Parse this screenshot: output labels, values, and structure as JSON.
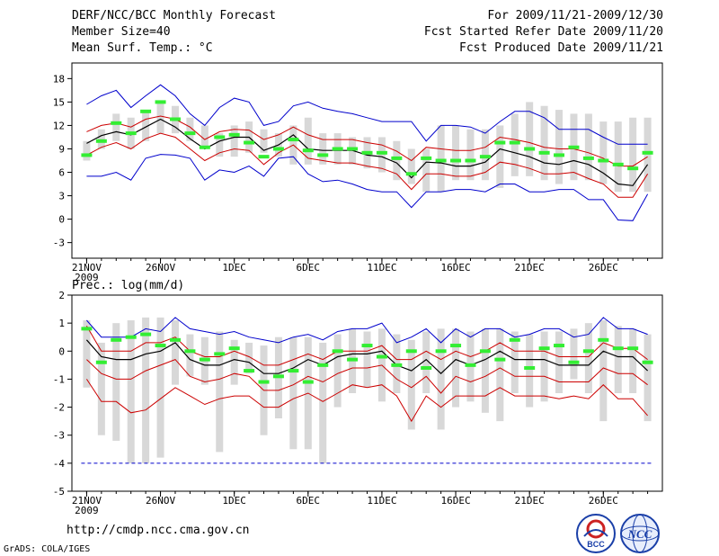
{
  "header": {
    "title": "DERF/NCC/BCC Monthly Forecast",
    "member_size": "Member Size=40",
    "variable": "Mean Surf. Temp.: °C",
    "forecast_period": "For 2009/11/21-2009/12/30",
    "started_refer": "Fcst Started Refer Date 2009/11/20",
    "produced": "Fcst Produced Date 2009/11/21"
  },
  "footer": {
    "url": "http://cmdp.ncc.cma.gov.cn",
    "credit": "GrADS: COLA/IGES",
    "logo_left_text": "BCC",
    "logo_right_text": "NCC"
  },
  "colors": {
    "box": "#d8d8d8",
    "green": "#33ee33",
    "blue": "#0000cc",
    "red": "#cc0000",
    "black": "#000000"
  },
  "chart_data": [
    {
      "type": "box_plume",
      "title": "Mean Surf. Temp.: °C",
      "unit": "°C",
      "ylim": [
        -5,
        20
      ],
      "yticks": [
        -3,
        0,
        3,
        6,
        9,
        12,
        15,
        18
      ],
      "xlim": [
        0,
        40
      ],
      "xtick_labels": [
        "21NOV",
        "26NOV",
        "1DEC",
        "6DEC",
        "11DEC",
        "16DEC",
        "21DEC",
        "26DEC"
      ],
      "xtick_day_index": [
        1,
        6,
        11,
        16,
        21,
        26,
        31,
        36
      ],
      "year_label": "2009",
      "days": 39,
      "box_low": [
        7.5,
        9.0,
        10.0,
        9.0,
        10.0,
        11.0,
        11.0,
        10.0,
        9.0,
        8.0,
        8.0,
        8.5,
        8.5,
        8.0,
        7.0,
        7.0,
        7.0,
        7.0,
        7.0,
        6.5,
        6.0,
        5.0,
        4.5,
        3.5,
        3.5,
        5.0,
        5.0,
        5.0,
        4.0,
        5.5,
        5.5,
        5.0,
        4.5,
        5.0,
        5.0,
        4.5,
        3.5,
        3.5,
        3.5
      ],
      "box_high": [
        10.0,
        11.5,
        13.5,
        13.0,
        14.0,
        15.0,
        14.5,
        13.0,
        12.0,
        11.0,
        12.0,
        12.5,
        11.5,
        11.0,
        12.0,
        13.0,
        11.0,
        11.0,
        10.5,
        10.5,
        10.5,
        10.0,
        9.0,
        9.0,
        12.0,
        12.0,
        11.5,
        11.5,
        12.0,
        13.5,
        15.0,
        14.5,
        14.0,
        13.5,
        13.5,
        12.5,
        12.5,
        13.0,
        13.0
      ],
      "series": [
        {
          "name": "max",
          "color": "blue",
          "values": [
            14.7,
            15.8,
            16.5,
            14.3,
            15.8,
            17.2,
            15.8,
            13.5,
            12.0,
            14.3,
            15.5,
            15.0,
            12.0,
            12.5,
            14.5,
            15.0,
            14.2,
            13.8,
            13.5,
            13.0,
            12.5,
            12.5,
            12.5,
            10.0,
            12.0,
            12.0,
            11.8,
            11.0,
            12.5,
            13.8,
            13.8,
            13.0,
            11.5,
            11.5,
            11.5,
            10.5,
            9.6,
            9.6,
            9.6
          ]
        },
        {
          "name": "p90",
          "color": "red",
          "values": [
            11.2,
            12.0,
            12.3,
            11.8,
            12.8,
            13.2,
            12.8,
            11.8,
            10.2,
            11.2,
            11.5,
            11.4,
            10.2,
            10.8,
            11.8,
            10.8,
            10.2,
            10.2,
            10.2,
            9.8,
            9.5,
            8.7,
            7.5,
            9.2,
            9.0,
            8.8,
            8.8,
            9.2,
            10.5,
            10.2,
            9.8,
            9.2,
            9.0,
            9.0,
            8.5,
            7.8,
            6.8,
            6.8,
            8.0
          ]
        },
        {
          "name": "mean",
          "color": "black",
          "values": [
            9.7,
            10.7,
            11.2,
            10.8,
            11.8,
            12.8,
            11.8,
            10.3,
            9.0,
            10.0,
            10.5,
            10.5,
            8.8,
            9.5,
            10.8,
            9.0,
            8.8,
            8.8,
            8.8,
            8.2,
            8.0,
            7.2,
            5.3,
            7.3,
            7.2,
            6.8,
            6.8,
            7.3,
            9.0,
            8.5,
            8.0,
            7.2,
            7.0,
            7.5,
            7.0,
            5.9,
            4.5,
            4.3,
            7.0
          ]
        },
        {
          "name": "p10",
          "color": "red",
          "values": [
            8.2,
            9.2,
            9.8,
            9.0,
            10.3,
            11.0,
            10.5,
            9.0,
            7.5,
            8.5,
            9.0,
            8.8,
            7.0,
            8.5,
            9.5,
            7.8,
            7.5,
            7.2,
            7.2,
            6.8,
            6.5,
            5.8,
            3.8,
            5.8,
            5.8,
            5.5,
            5.5,
            6.0,
            7.3,
            7.0,
            6.5,
            5.8,
            5.8,
            6.0,
            5.2,
            4.5,
            2.8,
            2.8,
            5.8
          ]
        },
        {
          "name": "min",
          "color": "blue",
          "values": [
            5.5,
            5.5,
            6.0,
            5.0,
            7.8,
            8.3,
            8.2,
            7.8,
            5.0,
            6.3,
            6.0,
            6.8,
            5.5,
            7.8,
            8.0,
            5.8,
            4.8,
            5.0,
            4.5,
            3.8,
            3.5,
            3.5,
            1.5,
            3.5,
            3.5,
            3.8,
            3.8,
            3.5,
            4.5,
            4.5,
            3.5,
            3.5,
            3.8,
            3.8,
            2.5,
            2.5,
            -0.1,
            -0.2,
            3.2
          ]
        }
      ],
      "control_values": [
        8.2,
        10.0,
        12.3,
        11.0,
        13.8,
        15.0,
        12.8,
        11.0,
        9.2,
        10.5,
        10.8,
        9.8,
        8.0,
        9.0,
        10.2,
        8.8,
        8.2,
        9.0,
        9.0,
        8.5,
        8.5,
        7.8,
        5.8,
        7.8,
        7.5,
        7.5,
        7.5,
        8.0,
        9.8,
        9.8,
        9.0,
        8.5,
        8.2,
        9.2,
        7.8,
        7.5,
        7.0,
        6.5,
        8.5
      ]
    },
    {
      "type": "box_plume",
      "title": "Prec.: log(mm/d)",
      "unit": "log(mm/d)",
      "ylim": [
        -5,
        2
      ],
      "yticks": [
        -5,
        -4,
        -3,
        -2,
        -1,
        0,
        1,
        2
      ],
      "xlim": [
        0,
        40
      ],
      "xtick_labels": [
        "21NOV",
        "26NOV",
        "1DEC",
        "6DEC",
        "11DEC",
        "16DEC",
        "21DEC",
        "26DEC"
      ],
      "xtick_day_index": [
        1,
        6,
        11,
        16,
        21,
        26,
        31,
        36
      ],
      "year_label": "2009",
      "days": 39,
      "floor_value": -4.0,
      "box_low": [
        -1.3,
        -3.0,
        -3.2,
        -4.0,
        -4.0,
        -3.8,
        -1.2,
        -0.9,
        -1.2,
        -3.6,
        -1.2,
        -0.8,
        -3.0,
        -2.4,
        -3.5,
        -3.5,
        -4.0,
        -2.0,
        -1.5,
        -1.3,
        -1.8,
        -1.5,
        -2.8,
        -1.5,
        -2.8,
        -2.0,
        -1.8,
        -2.2,
        -2.5,
        -1.5,
        -2.0,
        -1.8,
        -1.5,
        -1.0,
        -1.5,
        -2.5,
        -1.5,
        -1.5,
        -2.5
      ],
      "box_high": [
        1.1,
        0.3,
        1.0,
        1.1,
        1.2,
        1.2,
        1.1,
        0.6,
        0.5,
        0.7,
        0.4,
        0.3,
        0.2,
        0.5,
        0.5,
        0.5,
        0.3,
        0.6,
        0.8,
        0.7,
        0.8,
        0.6,
        0.4,
        0.7,
        0.8,
        0.8,
        0.7,
        0.8,
        0.8,
        0.7,
        0.6,
        0.7,
        0.7,
        0.8,
        1.0,
        1.1,
        0.9,
        0.8,
        0.6
      ],
      "series": [
        {
          "name": "max",
          "color": "blue",
          "values": [
            1.1,
            0.5,
            0.5,
            0.5,
            0.8,
            0.7,
            1.2,
            0.8,
            0.7,
            0.6,
            0.7,
            0.5,
            0.4,
            0.3,
            0.5,
            0.6,
            0.4,
            0.7,
            0.8,
            0.8,
            1.0,
            0.3,
            0.5,
            0.8,
            0.3,
            0.8,
            0.5,
            0.8,
            0.8,
            0.5,
            0.6,
            0.8,
            0.8,
            0.5,
            0.6,
            1.2,
            0.8,
            0.8,
            0.6
          ]
        },
        {
          "name": "p90",
          "color": "red",
          "values": [
            0.9,
            0.0,
            0.0,
            0.0,
            0.3,
            0.3,
            0.5,
            0.0,
            -0.2,
            -0.2,
            0.0,
            -0.2,
            -0.5,
            -0.5,
            -0.3,
            -0.1,
            -0.3,
            0.0,
            0.0,
            0.0,
            0.2,
            -0.3,
            -0.3,
            0.0,
            -0.3,
            0.0,
            -0.2,
            0.0,
            0.3,
            0.0,
            0.0,
            0.0,
            -0.2,
            -0.2,
            -0.2,
            0.3,
            0.1,
            0.1,
            -0.3
          ]
        },
        {
          "name": "mean",
          "color": "black",
          "values": [
            0.4,
            -0.2,
            -0.3,
            -0.3,
            -0.1,
            0.0,
            0.3,
            -0.3,
            -0.5,
            -0.5,
            -0.3,
            -0.4,
            -0.8,
            -0.8,
            -0.6,
            -0.3,
            -0.5,
            -0.2,
            -0.1,
            -0.1,
            0.0,
            -0.5,
            -0.7,
            -0.3,
            -0.8,
            -0.3,
            -0.5,
            -0.3,
            0.0,
            -0.3,
            -0.3,
            -0.3,
            -0.5,
            -0.5,
            -0.5,
            0.0,
            -0.2,
            -0.2,
            -0.7
          ]
        },
        {
          "name": "p10",
          "color": "red",
          "values": [
            -0.3,
            -0.8,
            -1.0,
            -1.0,
            -0.7,
            -0.5,
            -0.3,
            -0.9,
            -1.1,
            -1.0,
            -0.8,
            -0.9,
            -1.4,
            -1.4,
            -1.2,
            -0.9,
            -1.1,
            -0.8,
            -0.6,
            -0.6,
            -0.5,
            -1.0,
            -1.3,
            -0.9,
            -1.5,
            -0.9,
            -1.1,
            -0.9,
            -0.6,
            -0.9,
            -0.9,
            -0.9,
            -1.1,
            -1.1,
            -1.1,
            -0.6,
            -0.8,
            -0.8,
            -1.2
          ]
        },
        {
          "name": "min",
          "color": "red",
          "values": [
            -1.0,
            -1.8,
            -1.8,
            -2.2,
            -2.1,
            -1.7,
            -1.3,
            -1.6,
            -1.9,
            -1.7,
            -1.6,
            -1.6,
            -2.0,
            -2.0,
            -1.7,
            -1.5,
            -1.8,
            -1.5,
            -1.2,
            -1.3,
            -1.2,
            -1.6,
            -2.5,
            -1.6,
            -2.0,
            -1.6,
            -1.6,
            -1.6,
            -1.3,
            -1.6,
            -1.6,
            -1.6,
            -1.7,
            -1.6,
            -1.7,
            -1.2,
            -1.7,
            -1.7,
            -2.3
          ]
        }
      ],
      "control_values": [
        0.8,
        -0.4,
        0.4,
        0.5,
        0.6,
        0.2,
        0.4,
        0.0,
        -0.3,
        -0.1,
        0.1,
        -0.7,
        -1.1,
        -0.9,
        -0.7,
        -1.1,
        -0.5,
        0.0,
        -0.3,
        0.2,
        -0.2,
        -0.5,
        0.0,
        -0.6,
        0.0,
        0.2,
        -0.5,
        0.0,
        -0.3,
        0.4,
        -0.6,
        0.1,
        0.2,
        -0.4,
        0.0,
        0.4,
        0.1,
        0.1,
        -0.4
      ]
    }
  ]
}
